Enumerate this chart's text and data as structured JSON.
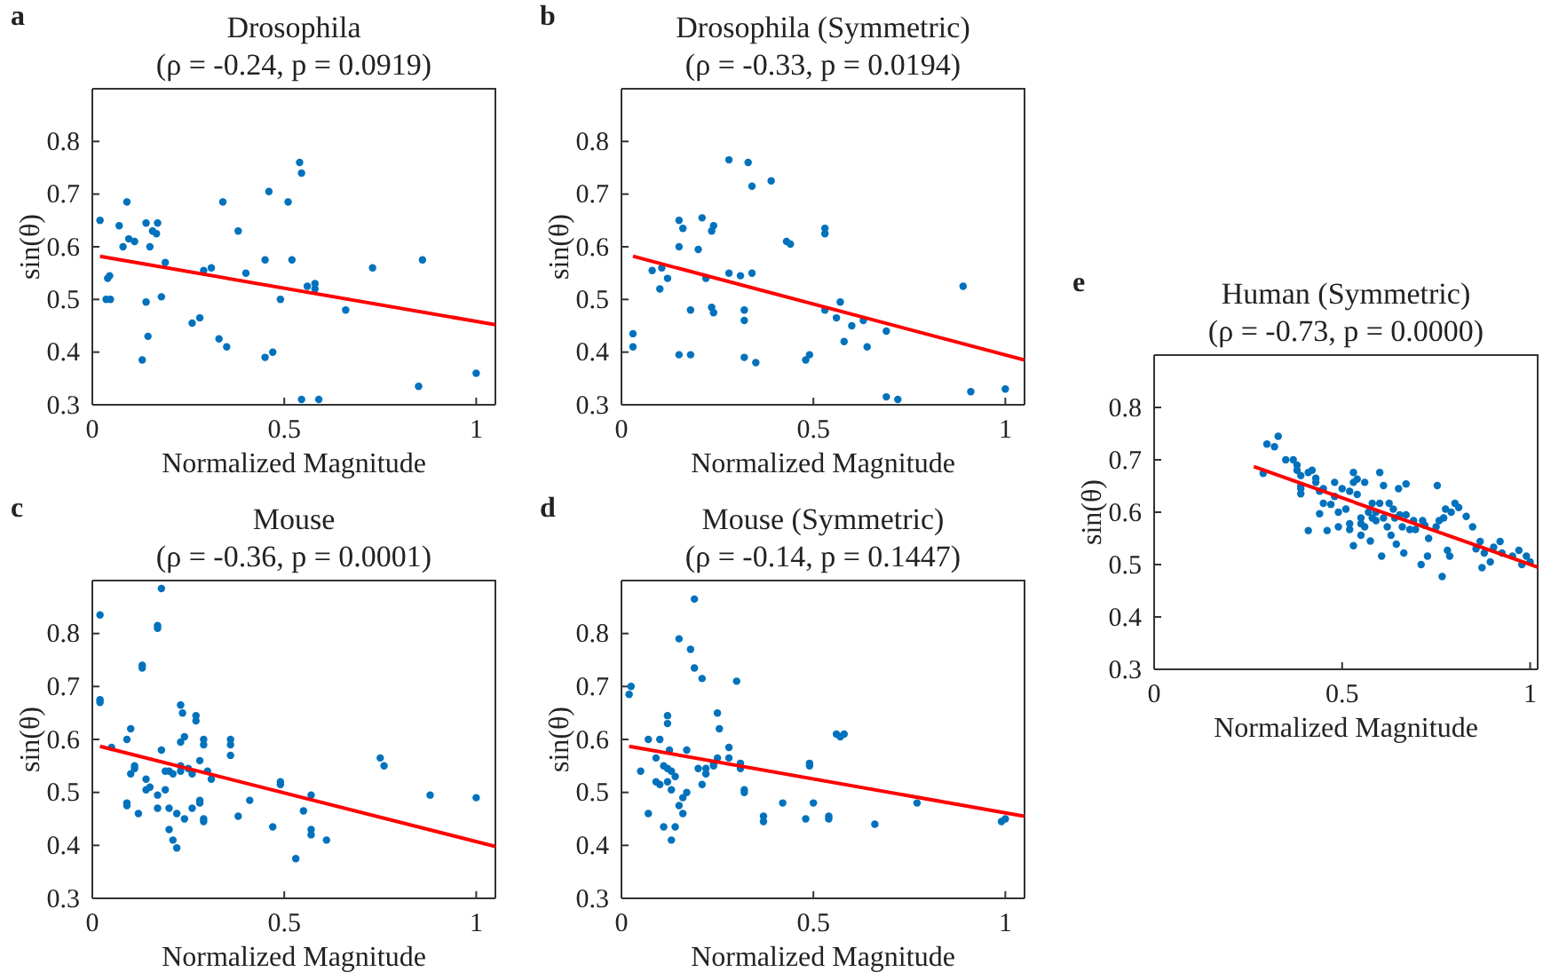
{
  "chart_data": [
    {
      "type": "scatter",
      "title": "Drosophila",
      "subtitle": "(ρ = -0.24, p = 0.0919)",
      "xlabel": "Normalized Magnitude",
      "ylabel": "sin(θ)",
      "annotations": [
        "a"
      ],
      "xlim": [
        0,
        1.05
      ],
      "ylim": [
        0.3,
        0.9
      ],
      "xticks": [
        0,
        0.5,
        1
      ],
      "yticks": [
        0.3,
        0.4,
        0.5,
        0.6,
        0.7,
        0.8
      ],
      "grid": false,
      "marker": "circle",
      "series": [
        {
          "color": "#0072bd",
          "x": [
            0.02,
            0.04,
            0.045,
            0.036,
            0.047,
            0.07,
            0.08,
            0.09,
            0.095,
            0.11,
            0.13,
            0.14,
            0.14,
            0.145,
            0.15,
            0.157,
            0.167,
            0.17,
            0.18,
            0.19,
            0.26,
            0.28,
            0.29,
            0.31,
            0.33,
            0.34,
            0.35,
            0.38,
            0.4,
            0.45,
            0.45,
            0.46,
            0.47,
            0.49,
            0.51,
            0.52,
            0.54,
            0.545,
            0.545,
            0.56,
            0.58,
            0.58,
            0.59,
            0.66,
            0.73,
            0.85,
            0.86,
            1.0
          ],
          "values": [
            0.65,
            0.54,
            0.545,
            0.5,
            0.5,
            0.64,
            0.6,
            0.685,
            0.615,
            0.61,
            0.385,
            0.645,
            0.495,
            0.43,
            0.6,
            0.63,
            0.625,
            0.645,
            0.505,
            0.57,
            0.455,
            0.465,
            0.555,
            0.56,
            0.425,
            0.685,
            0.41,
            0.63,
            0.55,
            0.575,
            0.39,
            0.705,
            0.4,
            0.5,
            0.685,
            0.575,
            0.76,
            0.74,
            0.31,
            0.525,
            0.53,
            0.52,
            0.31,
            0.48,
            0.56,
            0.335,
            0.575,
            0.36
          ]
        },
        {
          "type": "line",
          "marker": "none",
          "color": "#ff0000",
          "x": [
            0.02,
            1.05
          ],
          "values": [
            0.582,
            0.452
          ]
        }
      ]
    },
    {
      "type": "scatter",
      "title": "Drosophila (Symmetric)",
      "subtitle": "(ρ = -0.33, p = 0.0194)",
      "xlabel": "Normalized Magnitude",
      "ylabel": "sin(θ)",
      "annotations": [
        "b"
      ],
      "xlim": [
        0,
        1.05
      ],
      "ylim": [
        0.3,
        0.9
      ],
      "xticks": [
        0,
        0.5,
        1
      ],
      "yticks": [
        0.3,
        0.4,
        0.5,
        0.6,
        0.7,
        0.8
      ],
      "grid": false,
      "marker": "circle",
      "series": [
        {
          "color": "#0072bd",
          "x": [
            0.03,
            0.03,
            0.08,
            0.1,
            0.105,
            0.12,
            0.15,
            0.15,
            0.15,
            0.16,
            0.18,
            0.18,
            0.2,
            0.21,
            0.22,
            0.235,
            0.24,
            0.235,
            0.24,
            0.28,
            0.28,
            0.31,
            0.32,
            0.32,
            0.32,
            0.33,
            0.34,
            0.34,
            0.35,
            0.39,
            0.43,
            0.44,
            0.48,
            0.49,
            0.53,
            0.53,
            0.53,
            0.56,
            0.57,
            0.58,
            0.6,
            0.63,
            0.64,
            0.69,
            0.69,
            0.72,
            0.89,
            0.91,
            1.0
          ],
          "values": [
            0.435,
            0.41,
            0.555,
            0.52,
            0.56,
            0.54,
            0.395,
            0.65,
            0.6,
            0.635,
            0.48,
            0.395,
            0.595,
            0.655,
            0.54,
            0.63,
            0.64,
            0.485,
            0.475,
            0.765,
            0.55,
            0.545,
            0.46,
            0.48,
            0.39,
            0.76,
            0.55,
            0.715,
            0.38,
            0.725,
            0.61,
            0.605,
            0.385,
            0.395,
            0.635,
            0.625,
            0.48,
            0.465,
            0.495,
            0.42,
            0.45,
            0.46,
            0.41,
            0.44,
            0.315,
            0.31,
            0.525,
            0.325,
            0.33
          ]
        },
        {
          "type": "line",
          "marker": "none",
          "color": "#ff0000",
          "x": [
            0.03,
            1.05
          ],
          "values": [
            0.582,
            0.385
          ]
        }
      ]
    },
    {
      "type": "scatter",
      "title": "Mouse",
      "subtitle": "(ρ = -0.36, p = 0.0001)",
      "xlabel": "Normalized Magnitude",
      "ylabel": "sin(θ)",
      "annotations": [
        "c"
      ],
      "xlim": [
        0,
        1.05
      ],
      "ylim": [
        0.3,
        0.9
      ],
      "xticks": [
        0,
        0.5,
        1
      ],
      "yticks": [
        0.3,
        0.4,
        0.5,
        0.6,
        0.7,
        0.8
      ],
      "grid": false,
      "marker": "circle",
      "series": [
        {
          "color": "#0072bd",
          "x": [
            0.02,
            0.02,
            0.02,
            0.05,
            0.09,
            0.09,
            0.09,
            0.1,
            0.1,
            0.11,
            0.11,
            0.12,
            0.13,
            0.13,
            0.14,
            0.14,
            0.15,
            0.17,
            0.17,
            0.17,
            0.17,
            0.18,
            0.18,
            0.19,
            0.19,
            0.2,
            0.2,
            0.2,
            0.21,
            0.21,
            0.22,
            0.22,
            0.23,
            0.23,
            0.23,
            0.235,
            0.23,
            0.24,
            0.24,
            0.25,
            0.26,
            0.26,
            0.27,
            0.27,
            0.28,
            0.28,
            0.28,
            0.29,
            0.29,
            0.29,
            0.29,
            0.3,
            0.31,
            0.36,
            0.36,
            0.36,
            0.38,
            0.41,
            0.47,
            0.49,
            0.49,
            0.53,
            0.55,
            0.57,
            0.57,
            0.57,
            0.61,
            0.75,
            0.76,
            0.88,
            1.0
          ],
          "values": [
            0.835,
            0.67,
            0.675,
            0.585,
            0.6,
            0.475,
            0.48,
            0.535,
            0.62,
            0.55,
            0.545,
            0.46,
            0.74,
            0.735,
            0.505,
            0.525,
            0.51,
            0.815,
            0.81,
            0.495,
            0.47,
            0.885,
            0.58,
            0.54,
            0.505,
            0.43,
            0.54,
            0.47,
            0.535,
            0.41,
            0.395,
            0.46,
            0.665,
            0.55,
            0.54,
            0.65,
            0.595,
            0.605,
            0.45,
            0.545,
            0.47,
            0.535,
            0.645,
            0.635,
            0.56,
            0.485,
            0.48,
            0.6,
            0.59,
            0.45,
            0.445,
            0.54,
            0.525,
            0.6,
            0.59,
            0.57,
            0.455,
            0.485,
            0.435,
            0.52,
            0.515,
            0.375,
            0.465,
            0.495,
            0.43,
            0.42,
            0.41,
            0.565,
            0.55,
            0.495,
            0.49
          ]
        },
        {
          "type": "line",
          "marker": "none",
          "color": "#ff0000",
          "x": [
            0.02,
            1.05
          ],
          "values": [
            0.587,
            0.398
          ]
        }
      ]
    },
    {
      "type": "scatter",
      "title": "Mouse (Symmetric)",
      "subtitle": "(ρ = -0.14, p = 0.1447)",
      "xlabel": "Normalized Magnitude",
      "ylabel": "sin(θ)",
      "annotations": [
        "d"
      ],
      "xlim": [
        0,
        1.05
      ],
      "ylim": [
        0.3,
        0.9
      ],
      "xticks": [
        0,
        0.5,
        1
      ],
      "yticks": [
        0.3,
        0.4,
        0.5,
        0.6,
        0.7,
        0.8
      ],
      "grid": false,
      "marker": "circle",
      "series": [
        {
          "color": "#0072bd",
          "x": [
            0.02,
            0.025,
            0.05,
            0.07,
            0.07,
            0.09,
            0.09,
            0.1,
            0.1,
            0.11,
            0.11,
            0.12,
            0.12,
            0.12,
            0.12,
            0.125,
            0.13,
            0.13,
            0.13,
            0.14,
            0.14,
            0.15,
            0.15,
            0.16,
            0.16,
            0.17,
            0.17,
            0.18,
            0.19,
            0.19,
            0.2,
            0.21,
            0.21,
            0.22,
            0.22,
            0.24,
            0.24,
            0.25,
            0.25,
            0.255,
            0.28,
            0.28,
            0.3,
            0.31,
            0.31,
            0.32,
            0.32,
            0.37,
            0.37,
            0.42,
            0.48,
            0.49,
            0.49,
            0.5,
            0.54,
            0.54,
            0.56,
            0.57,
            0.58,
            0.66,
            0.77,
            0.99,
            1.0
          ],
          "values": [
            0.685,
            0.7,
            0.54,
            0.6,
            0.46,
            0.52,
            0.565,
            0.6,
            0.515,
            0.55,
            0.435,
            0.645,
            0.63,
            0.545,
            0.52,
            0.58,
            0.54,
            0.505,
            0.41,
            0.435,
            0.53,
            0.79,
            0.475,
            0.49,
            0.46,
            0.5,
            0.58,
            0.77,
            0.865,
            0.735,
            0.545,
            0.515,
            0.715,
            0.535,
            0.545,
            0.55,
            0.555,
            0.565,
            0.65,
            0.62,
            0.565,
            0.585,
            0.71,
            0.545,
            0.555,
            0.5,
            0.505,
            0.455,
            0.445,
            0.48,
            0.45,
            0.55,
            0.555,
            0.48,
            0.45,
            0.455,
            0.61,
            0.605,
            0.61,
            0.44,
            0.48,
            0.445,
            0.45
          ]
        },
        {
          "type": "line",
          "marker": "none",
          "color": "#ff0000",
          "x": [
            0.02,
            1.05
          ],
          "values": [
            0.587,
            0.455
          ]
        }
      ]
    },
    {
      "type": "scatter",
      "title": "Human (Symmetric)",
      "subtitle": "(ρ = -0.73, p = 0.0000)",
      "xlabel": "Normalized Magnitude",
      "ylabel": "sin(θ)",
      "annotations": [
        "e"
      ],
      "xlim": [
        0,
        1.02
      ],
      "ylim": [
        0.3,
        0.9
      ],
      "xticks": [
        0,
        0.5,
        1
      ],
      "yticks": [
        0.3,
        0.4,
        0.5,
        0.6,
        0.7,
        0.8
      ],
      "grid": false,
      "marker": "circle",
      "series": [
        {
          "color": "#0072bd",
          "x": [
            0.29,
            0.3,
            0.32,
            0.33,
            0.35,
            0.37,
            0.38,
            0.38,
            0.39,
            0.39,
            0.39,
            0.39,
            0.41,
            0.41,
            0.42,
            0.43,
            0.43,
            0.44,
            0.44,
            0.45,
            0.45,
            0.46,
            0.47,
            0.48,
            0.48,
            0.49,
            0.49,
            0.5,
            0.51,
            0.52,
            0.52,
            0.52,
            0.53,
            0.53,
            0.53,
            0.54,
            0.54,
            0.55,
            0.55,
            0.55,
            0.56,
            0.56,
            0.57,
            0.575,
            0.58,
            0.58,
            0.59,
            0.59,
            0.6,
            0.6,
            0.605,
            0.61,
            0.61,
            0.62,
            0.625,
            0.63,
            0.636,
            0.64,
            0.644,
            0.65,
            0.653,
            0.66,
            0.664,
            0.67,
            0.67,
            0.68,
            0.69,
            0.695,
            0.71,
            0.714,
            0.72,
            0.727,
            0.73,
            0.75,
            0.753,
            0.758,
            0.766,
            0.77,
            0.775,
            0.78,
            0.786,
            0.79,
            0.8,
            0.81,
            0.83,
            0.847,
            0.856,
            0.867,
            0.872,
            0.878,
            0.894,
            0.903,
            0.92,
            0.925,
            0.953,
            0.97,
            0.978,
            0.99,
            1.0
          ],
          "values": [
            0.674,
            0.73,
            0.725,
            0.745,
            0.7,
            0.7,
            0.69,
            0.68,
            0.67,
            0.65,
            0.635,
            0.645,
            0.565,
            0.676,
            0.68,
            0.665,
            0.657,
            0.64,
            0.597,
            0.617,
            0.645,
            0.565,
            0.615,
            0.657,
            0.63,
            0.6,
            0.572,
            0.645,
            0.606,
            0.64,
            0.578,
            0.567,
            0.676,
            0.657,
            0.536,
            0.634,
            0.663,
            0.589,
            0.578,
            0.556,
            0.657,
            0.572,
            0.6,
            0.545,
            0.617,
            0.589,
            0.6,
            0.584,
            0.676,
            0.617,
            0.516,
            0.651,
            0.589,
            0.572,
            0.617,
            0.556,
            0.606,
            0.589,
            0.539,
            0.645,
            0.595,
            0.572,
            0.522,
            0.654,
            0.595,
            0.567,
            0.584,
            0.567,
            0.5,
            0.584,
            0.575,
            0.516,
            0.55,
            0.572,
            0.651,
            0.584,
            0.477,
            0.589,
            0.606,
            0.527,
            0.516,
            0.6,
            0.617,
            0.609,
            0.592,
            0.572,
            0.53,
            0.544,
            0.494,
            0.522,
            0.505,
            0.533,
            0.544,
            0.522,
            0.516,
            0.527,
            0.5,
            0.516,
            0.505
          ]
        },
        {
          "type": "line",
          "marker": "none",
          "color": "#ff0000",
          "x": [
            0.265,
            1.02
          ],
          "values": [
            0.687,
            0.495
          ]
        }
      ]
    }
  ]
}
